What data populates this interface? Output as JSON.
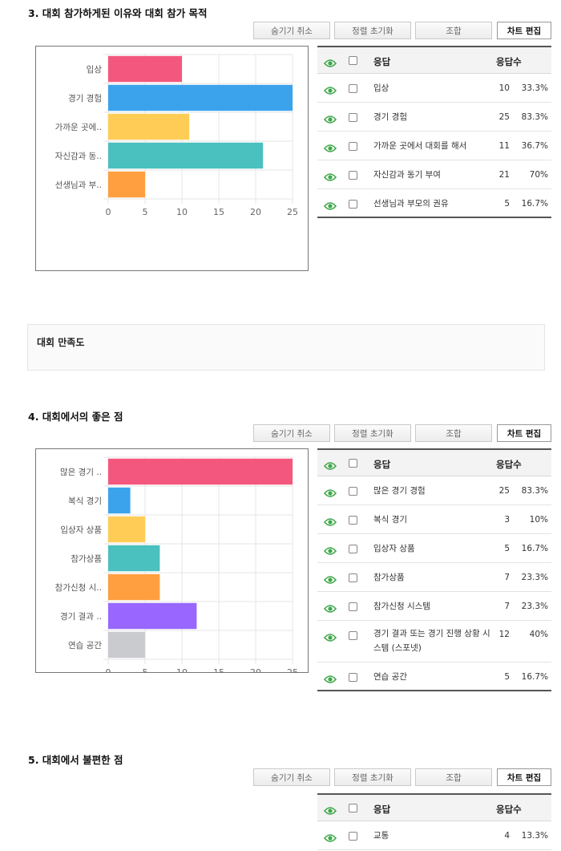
{
  "toolbar": {
    "hide_cancel": "숨기기 취소",
    "sort_reset": "정렬 초기화",
    "combine": "조합",
    "chart_edit": "차트 편집"
  },
  "table_header": {
    "response": "응답",
    "count": "응답수"
  },
  "colors": {
    "eye": "#3fa84a",
    "grid": "#e6e6e6"
  },
  "section": {
    "title": "대회 만족도"
  },
  "questions": [
    {
      "title": "3. 대회 참가하게된 이유와 대회 참가 목적",
      "chart_data": {
        "type": "bar",
        "orientation": "horizontal",
        "categories": [
          "입상",
          "경기 경험",
          "가까운 곳에..",
          "자신감과 동..",
          "선생님과 부.."
        ],
        "values": [
          10,
          25,
          11,
          21,
          5
        ],
        "colors": [
          "#f4577d",
          "#3ba3ec",
          "#ffcd56",
          "#4ac0bf",
          "#ff9f40"
        ],
        "xlim": [
          0,
          25
        ],
        "xticks": [
          0,
          5,
          10,
          15,
          20,
          25
        ],
        "grid": true
      },
      "rows": [
        {
          "label": "입상",
          "count": "10",
          "pct": "33.3%"
        },
        {
          "label": "경기 경험",
          "count": "25",
          "pct": "83.3%"
        },
        {
          "label": "가까운 곳에서 대회를 해서",
          "count": "11",
          "pct": "36.7%"
        },
        {
          "label": "자신감과 동기 부여",
          "count": "21",
          "pct": "70%"
        },
        {
          "label": "선생님과 부모의 권유",
          "count": "5",
          "pct": "16.7%"
        }
      ]
    },
    {
      "title": "4. 대회에서의 좋은 점",
      "chart_data": {
        "type": "bar",
        "orientation": "horizontal",
        "categories": [
          "많은 경기 ..",
          "복식 경기",
          "입상자 상품",
          "참가상품",
          "참가신청 시..",
          "경기 결과 ..",
          "연습 공간"
        ],
        "values": [
          25,
          3,
          5,
          7,
          7,
          12,
          5
        ],
        "colors": [
          "#f4577d",
          "#3ba3ec",
          "#ffcd56",
          "#4ac0bf",
          "#ff9f40",
          "#9966ff",
          "#c9cbcf"
        ],
        "xlim": [
          0,
          25
        ],
        "xticks": [
          0,
          5,
          10,
          15,
          20,
          25
        ],
        "grid": true
      },
      "rows": [
        {
          "label": "많은 경기 경험",
          "count": "25",
          "pct": "83.3%"
        },
        {
          "label": "복식 경기",
          "count": "3",
          "pct": "10%"
        },
        {
          "label": "입상자 상품",
          "count": "5",
          "pct": "16.7%"
        },
        {
          "label": "참가상품",
          "count": "7",
          "pct": "23.3%"
        },
        {
          "label": "참가신청 시스템",
          "count": "7",
          "pct": "23.3%"
        },
        {
          "label": "경기 결과 또는 경기 진행 상황 시스템 (스포넷)",
          "count": "12",
          "pct": "40%"
        },
        {
          "label": "연습 공간",
          "count": "5",
          "pct": "16.7%"
        }
      ]
    },
    {
      "title": "5. 대회에서 불편한 점",
      "rows": [
        {
          "label": "교통",
          "count": "4",
          "pct": "13.3%"
        }
      ]
    }
  ]
}
